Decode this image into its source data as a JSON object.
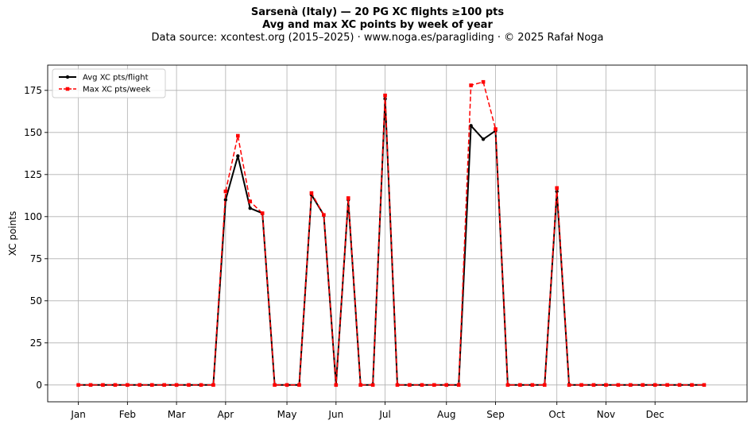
{
  "header": {
    "title1": "Sarsenà (Italy)  —  20 PG XC flights ≥100 pts",
    "title2": "Avg and max XC points by week of year",
    "subtitle": "Data source: xcontest.org (2015–2025)  ·  www.noga.es/paragliding  ·  © 2025 Rafał Noga"
  },
  "colors": {
    "avg": "#000000",
    "max": "#ff0000",
    "grid": "#b0b0b0"
  },
  "chart_data": {
    "type": "line",
    "title": "Sarsenà (Italy)  —  20 PG XC flights ≥100 pts",
    "subtitle": "Avg and max XC points by week of year",
    "xlabel": "",
    "ylabel": "XC points",
    "xlim": [
      -2.5,
      54.5
    ],
    "ylim": [
      -10,
      190
    ],
    "yticks": [
      0,
      25,
      50,
      75,
      100,
      125,
      150,
      175
    ],
    "xticks": [
      {
        "label": "Jan",
        "week": 0
      },
      {
        "label": "Feb",
        "week": 4
      },
      {
        "label": "Mar",
        "week": 8
      },
      {
        "label": "Apr",
        "week": 12
      },
      {
        "label": "May",
        "week": 17
      },
      {
        "label": "Jun",
        "week": 21
      },
      {
        "label": "Jul",
        "week": 25
      },
      {
        "label": "Aug",
        "week": 30
      },
      {
        "label": "Sep",
        "week": 34
      },
      {
        "label": "Oct",
        "week": 39
      },
      {
        "label": "Nov",
        "week": 43
      },
      {
        "label": "Dec",
        "week": 47
      }
    ],
    "grid": true,
    "legend_position": "top-left",
    "x": [
      0,
      1,
      2,
      3,
      4,
      5,
      6,
      7,
      8,
      9,
      10,
      11,
      12,
      13,
      14,
      15,
      16,
      17,
      18,
      19,
      20,
      21,
      22,
      23,
      24,
      25,
      26,
      27,
      28,
      29,
      30,
      31,
      32,
      33,
      34,
      35,
      36,
      37,
      38,
      39,
      40,
      41,
      42,
      43,
      44,
      45,
      46,
      47,
      48,
      49,
      50,
      51
    ],
    "series": [
      {
        "name": "Avg XC pts/flight",
        "color": "#000000",
        "style": "solid",
        "marker": "circle",
        "values": [
          0,
          0,
          0,
          0,
          0,
          0,
          0,
          0,
          0,
          0,
          0,
          0,
          110,
          136,
          105,
          102,
          0,
          0,
          0,
          113,
          101,
          0,
          110,
          0,
          0,
          170,
          0,
          0,
          0,
          0,
          0,
          0,
          154,
          146,
          151,
          0,
          0,
          0,
          0,
          115,
          0,
          0,
          0,
          0,
          0,
          0,
          0,
          0,
          0,
          0,
          0,
          0
        ]
      },
      {
        "name": "Max XC pts/week",
        "color": "#ff0000",
        "style": "dashed",
        "marker": "square",
        "values": [
          0,
          0,
          0,
          0,
          0,
          0,
          0,
          0,
          0,
          0,
          0,
          0,
          115,
          148,
          109,
          102,
          0,
          0,
          0,
          114,
          101,
          0,
          111,
          0,
          0,
          172,
          0,
          0,
          0,
          0,
          0,
          0,
          178,
          180,
          152,
          0,
          0,
          0,
          0,
          117,
          0,
          0,
          0,
          0,
          0,
          0,
          0,
          0,
          0,
          0,
          0,
          0
        ]
      }
    ]
  }
}
